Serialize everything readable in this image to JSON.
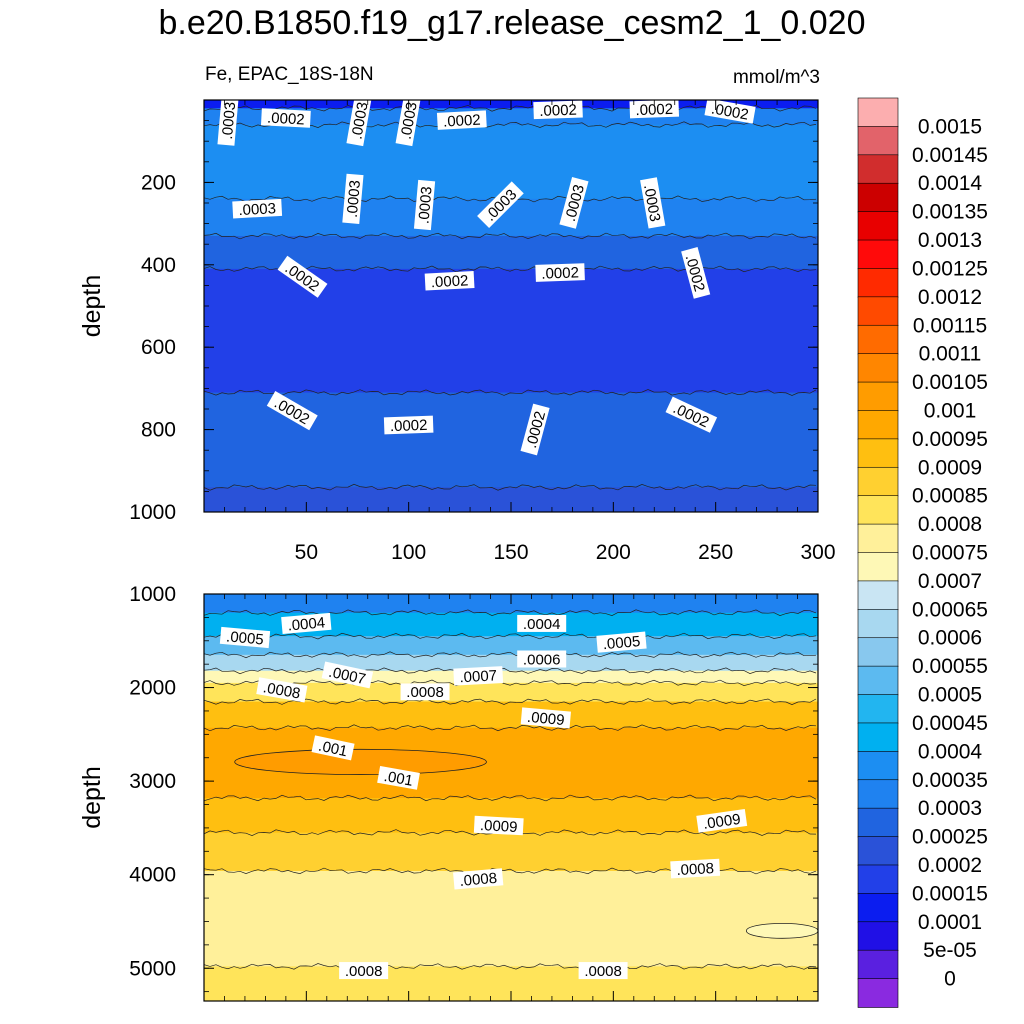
{
  "title": "b.e20.B1850.f19_g17.release_cesm2_1_0.020",
  "left_string": "Fe, EPAC_18S-18N",
  "right_string": "mmol/m^3",
  "chart_data": [
    {
      "type": "heatmap",
      "panel": "upper",
      "variable": "Fe",
      "units": "mmol/m^3",
      "ylabel": "depth",
      "xlabel": "",
      "xlim": [
        0,
        300
      ],
      "ylim": [
        1000,
        0
      ],
      "y_reversed": true,
      "x_ticks": [
        "50",
        "100",
        "150",
        "200",
        "250",
        "300"
      ],
      "x_tick_values": [
        50,
        100,
        150,
        200,
        250,
        300
      ],
      "y_ticks": [
        "200",
        "400",
        "600",
        "800",
        "1000"
      ],
      "y_tick_values": [
        200,
        400,
        600,
        800,
        1000
      ],
      "bands": [
        {
          "depth_top": 0,
          "depth_bottom": 20,
          "value": 0.0001
        },
        {
          "depth_top": 20,
          "depth_bottom": 60,
          "value": 0.0003
        },
        {
          "depth_top": 60,
          "depth_bottom": 240,
          "value": 0.00035
        },
        {
          "depth_top": 240,
          "depth_bottom": 330,
          "value": 0.0003
        },
        {
          "depth_top": 330,
          "depth_bottom": 410,
          "value": 0.00025
        },
        {
          "depth_top": 410,
          "depth_bottom": 710,
          "value": 0.00015
        },
        {
          "depth_top": 710,
          "depth_bottom": 940,
          "value": 0.00025
        },
        {
          "depth_top": 940,
          "depth_bottom": 1000,
          "value": 0.0002
        }
      ],
      "contour_labels": [
        {
          "text": ".0003",
          "x": 12,
          "depth": 50,
          "angle": -85
        },
        {
          "text": ".0002",
          "x": 40,
          "depth": 45,
          "angle": 3
        },
        {
          "text": ".0003",
          "x": 76,
          "depth": 50,
          "angle": -80
        },
        {
          "text": ".0003",
          "x": 100,
          "depth": 50,
          "angle": -80
        },
        {
          "text": ".0002",
          "x": 126,
          "depth": 50,
          "angle": -3
        },
        {
          "text": ".0002",
          "x": 173,
          "depth": 25,
          "angle": -2
        },
        {
          "text": ".0002",
          "x": 220,
          "depth": 23,
          "angle": -2
        },
        {
          "text": ".0002",
          "x": 257,
          "depth": 28,
          "angle": 10
        },
        {
          "text": ".0003",
          "x": 26,
          "depth": 265,
          "angle": -3
        },
        {
          "text": ".0003",
          "x": 73,
          "depth": 240,
          "angle": -85
        },
        {
          "text": ".0003",
          "x": 108,
          "depth": 255,
          "angle": -85
        },
        {
          "text": ".0003",
          "x": 145,
          "depth": 255,
          "angle": -45
        },
        {
          "text": ".0003",
          "x": 181,
          "depth": 250,
          "angle": -75
        },
        {
          "text": ".0003",
          "x": 219,
          "depth": 250,
          "angle": 80
        },
        {
          "text": ".0002",
          "x": 48,
          "depth": 430,
          "angle": 35
        },
        {
          "text": ".0002",
          "x": 120,
          "depth": 440,
          "angle": -3
        },
        {
          "text": ".0002",
          "x": 174,
          "depth": 420,
          "angle": -2
        },
        {
          "text": ".0002",
          "x": 240,
          "depth": 420,
          "angle": 75
        },
        {
          "text": ".0002",
          "x": 43,
          "depth": 755,
          "angle": 30
        },
        {
          "text": ".0002",
          "x": 100,
          "depth": 790,
          "angle": -2
        },
        {
          "text": ".0002",
          "x": 162,
          "depth": 800,
          "angle": -75
        },
        {
          "text": ".0002",
          "x": 238,
          "depth": 765,
          "angle": 25
        }
      ]
    },
    {
      "type": "heatmap",
      "panel": "lower",
      "variable": "Fe",
      "units": "mmol/m^3",
      "ylabel": "depth",
      "xlabel": "",
      "xlim": [
        0,
        300
      ],
      "ylim": [
        5350,
        1000
      ],
      "y_reversed": true,
      "y_ticks": [
        "1000",
        "2000",
        "3000",
        "4000",
        "5000"
      ],
      "y_tick_values": [
        1000,
        2000,
        3000,
        4000,
        5000
      ],
      "bands": [
        {
          "depth_top": 1000,
          "depth_bottom": 1200,
          "value": 0.0003
        },
        {
          "depth_top": 1200,
          "depth_bottom": 1450,
          "value": 0.0004
        },
        {
          "depth_top": 1450,
          "depth_bottom": 1650,
          "value": 0.0005
        },
        {
          "depth_top": 1650,
          "depth_bottom": 1820,
          "value": 0.0006
        },
        {
          "depth_top": 1820,
          "depth_bottom": 1950,
          "value": 0.0007
        },
        {
          "depth_top": 1950,
          "depth_bottom": 2150,
          "value": 0.0008
        },
        {
          "depth_top": 2150,
          "depth_bottom": 2430,
          "value": 0.0009
        },
        {
          "depth_top": 2430,
          "depth_bottom": 3180,
          "value": 0.00095
        },
        {
          "depth_top": 3180,
          "depth_bottom": 3550,
          "value": 0.0009
        },
        {
          "depth_top": 3550,
          "depth_bottom": 3960,
          "value": 0.00085
        },
        {
          "depth_top": 3960,
          "depth_bottom": 4980,
          "value": 0.00075
        },
        {
          "depth_top": 4980,
          "depth_bottom": 5350,
          "value": 0.0008
        }
      ],
      "patches": [
        {
          "value": 0.001,
          "x_range": [
            15,
            138
          ],
          "depth_range": [
            2660,
            2930
          ]
        },
        {
          "value": 0.0007,
          "x_range": [
            265,
            300
          ],
          "depth_range": [
            4520,
            4680
          ]
        }
      ],
      "contour_labels": [
        {
          "text": ".0004",
          "x": 50,
          "depth": 1320,
          "angle": -5
        },
        {
          "text": ".0005",
          "x": 20,
          "depth": 1470,
          "angle": 5
        },
        {
          "text": ".0004",
          "x": 165,
          "depth": 1320,
          "angle": 0
        },
        {
          "text": ".0005",
          "x": 204,
          "depth": 1520,
          "angle": -5
        },
        {
          "text": ".0006",
          "x": 165,
          "depth": 1700,
          "angle": 0
        },
        {
          "text": ".0007",
          "x": 70,
          "depth": 1870,
          "angle": 12
        },
        {
          "text": ".0007",
          "x": 134,
          "depth": 1880,
          "angle": -3
        },
        {
          "text": ".0008",
          "x": 38,
          "depth": 2030,
          "angle": 10
        },
        {
          "text": ".0008",
          "x": 108,
          "depth": 2050,
          "angle": 0
        },
        {
          "text": ".0009",
          "x": 167,
          "depth": 2330,
          "angle": 5
        },
        {
          "text": ".001",
          "x": 63,
          "depth": 2650,
          "angle": 12
        },
        {
          "text": ".001",
          "x": 95,
          "depth": 2970,
          "angle": 10
        },
        {
          "text": ".0009",
          "x": 144,
          "depth": 3480,
          "angle": 3
        },
        {
          "text": ".0009",
          "x": 253,
          "depth": 3430,
          "angle": -8
        },
        {
          "text": ".0008",
          "x": 134,
          "depth": 4050,
          "angle": -5
        },
        {
          "text": ".0008",
          "x": 240,
          "depth": 3940,
          "angle": -3
        },
        {
          "text": ".0008",
          "x": 78,
          "depth": 5030,
          "angle": 0
        },
        {
          "text": ".0008",
          "x": 195,
          "depth": 5030,
          "angle": 0
        }
      ]
    }
  ],
  "colorbar": {
    "labels": [
      "0.0015",
      "0.00145",
      "0.0014",
      "0.00135",
      "0.0013",
      "0.00125",
      "0.0012",
      "0.00115",
      "0.0011",
      "0.00105",
      "0.001",
      "0.00095",
      "0.0009",
      "0.00085",
      "0.0008",
      "0.00075",
      "0.0007",
      "0.00065",
      "0.0006",
      "0.00055",
      "0.0005",
      "0.00045",
      "0.0004",
      "0.00035",
      "0.0003",
      "0.00025",
      "0.0002",
      "0.00015",
      "0.0001",
      "5e-05",
      "0"
    ],
    "colors_top_to_bottom": [
      "#fcaeaf",
      "#e2636a",
      "#d12d2d",
      "#cc0000",
      "#e80000",
      "#ff0a0a",
      "#ff2a00",
      "#ff4a00",
      "#ff6b00",
      "#ff8600",
      "#ff9c00",
      "#ffa800",
      "#ffbf10",
      "#ffd030",
      "#ffe45a",
      "#fff09a",
      "#fef8b6",
      "#c9e5f3",
      "#a8d8f0",
      "#88c8ee",
      "#5cbaf0",
      "#22b5f0",
      "#00b0f0",
      "#1c8ef2",
      "#1f82f0",
      "#2064e0",
      "#2a52d8",
      "#2240e8",
      "#0b1df0",
      "#2010e6",
      "#5a20e0",
      "#8a2ae0"
    ]
  }
}
